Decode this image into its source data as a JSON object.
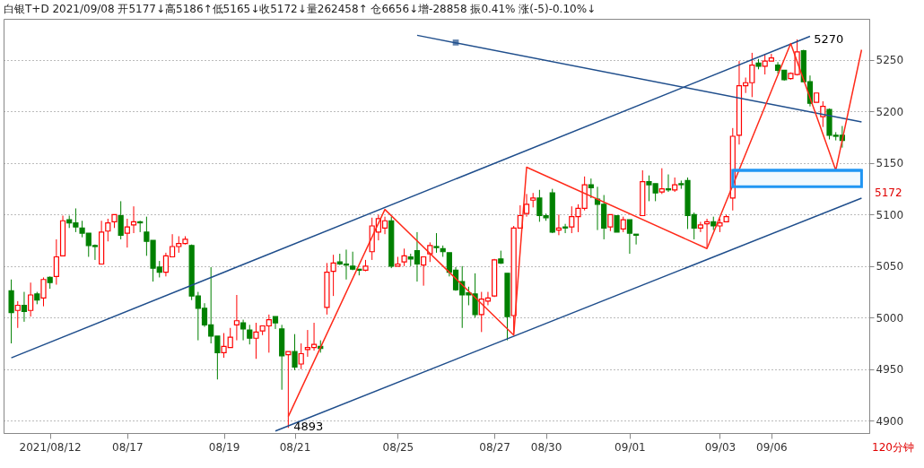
{
  "chart_data": {
    "type": "candlestick",
    "title": "白银T+D 2021/09/08 开5177↓高5186↑低5165↓收5172↓量262458↑ 仓6656↓增-28858 振0.41% 涨(-5)-0.10%↓",
    "categories": [
      null,
      null,
      null,
      null,
      null,
      null,
      "2021/08/12",
      null,
      null,
      null,
      null,
      null,
      null,
      null,
      null,
      null,
      null,
      null,
      "08/17",
      null,
      null,
      null,
      null,
      null,
      null,
      null,
      null,
      null,
      null,
      null,
      null,
      null,
      null,
      "08/19",
      null,
      null,
      null,
      null,
      null,
      null,
      null,
      null,
      null,
      null,
      "08/21",
      null,
      null,
      null,
      null,
      null,
      null,
      null,
      null,
      null,
      null,
      null,
      null,
      null,
      null,
      null,
      "08/25",
      null,
      null,
      null,
      null,
      null,
      null,
      null,
      null,
      null,
      null,
      null,
      null,
      null,
      null,
      "08/27",
      null,
      null,
      null,
      null,
      null,
      null,
      null,
      "08/30",
      null,
      null,
      null,
      null,
      null,
      null,
      null,
      null,
      null,
      null,
      null,
      null,
      "09/01",
      null,
      null,
      null,
      null,
      null,
      null,
      null,
      null,
      null,
      null,
      null,
      null,
      null,
      "09/03",
      null,
      null,
      null,
      null,
      null,
      null,
      null,
      "09/06",
      null,
      null,
      null,
      null,
      null,
      null,
      null,
      null,
      null,
      null,
      null,
      null,
      null,
      null
    ],
    "ohlc": [
      [
        5026,
        5037,
        4975,
        5005
      ],
      [
        5007,
        5016,
        4990,
        5012
      ],
      [
        5012,
        5025,
        4996,
        5006
      ],
      [
        5007,
        5034,
        5001,
        5022
      ],
      [
        5023,
        5025,
        5013,
        5017
      ],
      [
        5019,
        5039,
        5011,
        5037
      ],
      [
        5039,
        5040,
        5028,
        5034
      ],
      [
        5040,
        5076,
        5032,
        5059
      ],
      [
        5060,
        5099,
        5060,
        5094
      ],
      [
        5095,
        5099,
        5087,
        5092
      ],
      [
        5092,
        5106,
        5083,
        5088
      ],
      [
        5087,
        5094,
        5078,
        5082
      ],
      [
        5082,
        5082,
        5059,
        5070
      ],
      [
        5070,
        5071,
        5056,
        5069
      ],
      [
        5052,
        5094,
        5052,
        5083
      ],
      [
        5084,
        5096,
        5074,
        5092
      ],
      [
        5093,
        5100,
        5087,
        5100
      ],
      [
        5099,
        5113,
        5076,
        5080
      ],
      [
        5082,
        5096,
        5068,
        5088
      ],
      [
        5090,
        5108,
        5082,
        5093
      ],
      [
        5093,
        5094,
        5083,
        5092
      ],
      [
        5083,
        5098,
        5060,
        5074
      ],
      [
        5075,
        5075,
        5035,
        5048
      ],
      [
        5049,
        5055,
        5039,
        5044
      ],
      [
        5044,
        5063,
        5040,
        5060
      ],
      [
        5059,
        5081,
        5059,
        5069
      ],
      [
        5069,
        5079,
        5063,
        5072
      ],
      [
        5072,
        5079,
        5071,
        5076
      ],
      [
        5070,
        5071,
        5017,
        5021
      ],
      [
        5021,
        5025,
        4978,
        5009
      ],
      [
        5009,
        5014,
        4991,
        4993
      ],
      [
        4993,
        5049,
        4975,
        4982
      ],
      [
        4982,
        4982,
        4940,
        4966
      ],
      [
        4966,
        4985,
        4961,
        4972
      ],
      [
        4971,
        4990,
        4971,
        4981
      ],
      [
        4993,
        5022,
        4978,
        4997
      ],
      [
        4995,
        4998,
        4978,
        4989
      ],
      [
        4988,
        4993,
        4974,
        4980
      ],
      [
        4980,
        4995,
        4960,
        4986
      ],
      [
        4987,
        4992,
        4983,
        4992
      ],
      [
        4992,
        5003,
        4966,
        4998
      ],
      [
        5001,
        5001,
        4989,
        4995
      ],
      [
        4989,
        4993,
        4930,
        4963
      ],
      [
        4964,
        4967,
        4893,
        4967
      ],
      [
        4967,
        4984,
        4949,
        4952
      ],
      [
        4955,
        4975,
        4950,
        4965
      ],
      [
        4969,
        4988,
        4962,
        4971
      ],
      [
        4971,
        4995,
        4968,
        4974
      ],
      [
        4972,
        4978,
        4966,
        4970
      ],
      [
        5010,
        5053,
        5003,
        5044
      ],
      [
        5045,
        5061,
        5021,
        5053
      ],
      [
        5054,
        5062,
        5051,
        5052
      ],
      [
        5052,
        5066,
        5037,
        5051
      ],
      [
        5050,
        5064,
        5046,
        5047
      ],
      [
        5047,
        5047,
        5041,
        5046
      ],
      [
        5046,
        5056,
        5045,
        5050
      ],
      [
        5064,
        5097,
        5056,
        5089
      ],
      [
        5083,
        5100,
        5075,
        5096
      ],
      [
        5087,
        5098,
        5081,
        5094
      ],
      [
        5094,
        5098,
        5048,
        5050
      ],
      [
        5050,
        5059,
        5050,
        5052
      ],
      [
        5054,
        5067,
        5050,
        5060
      ],
      [
        5059,
        5062,
        5050,
        5057
      ],
      [
        5065,
        5083,
        5035,
        5052
      ],
      [
        5051,
        5059,
        5031,
        5059
      ],
      [
        5062,
        5073,
        5054,
        5070
      ],
      [
        5069,
        5082,
        5063,
        5068
      ],
      [
        5067,
        5070,
        5059,
        5064
      ],
      [
        5063,
        5063,
        5040,
        5044
      ],
      [
        5046,
        5049,
        5026,
        5027
      ],
      [
        5035,
        5050,
        4990,
        5022
      ],
      [
        5024,
        5030,
        5012,
        5022
      ],
      [
        5023,
        5043,
        5000,
        5003
      ],
      [
        5003,
        5025,
        4986,
        5018
      ],
      [
        5016,
        5025,
        5012,
        5019
      ],
      [
        5021,
        5057,
        5020,
        5056
      ],
      [
        5057,
        5065,
        5052,
        5053
      ],
      [
        5043,
        5043,
        4978,
        5001
      ],
      [
        5002,
        5089,
        4985,
        5087
      ],
      [
        5087,
        5109,
        5087,
        5099
      ],
      [
        5101,
        5120,
        5098,
        5110
      ],
      [
        5114,
        5121,
        5107,
        5116
      ],
      [
        5116,
        5124,
        5093,
        5099
      ],
      [
        5099,
        5101,
        5094,
        5097
      ],
      [
        5121,
        5125,
        5082,
        5083
      ],
      [
        5085,
        5100,
        5080,
        5087
      ],
      [
        5088,
        5091,
        5082,
        5087
      ],
      [
        5088,
        5108,
        5082,
        5098
      ],
      [
        5098,
        5110,
        5083,
        5106
      ],
      [
        5106,
        5137,
        5104,
        5129
      ],
      [
        5129,
        5135,
        5116,
        5126
      ],
      [
        5115,
        5127,
        5085,
        5110
      ],
      [
        5110,
        5119,
        5076,
        5087
      ],
      [
        5088,
        5100,
        5084,
        5100
      ],
      [
        5099,
        5099,
        5083,
        5083
      ],
      [
        5086,
        5098,
        5083,
        5095
      ],
      [
        5095,
        5095,
        5062,
        5082
      ],
      [
        5081,
        5081,
        5071,
        5080
      ],
      [
        5099,
        5143,
        5099,
        5132
      ],
      [
        5132,
        5138,
        5113,
        5129
      ],
      [
        5130,
        5130,
        5113,
        5121
      ],
      [
        5122,
        5145,
        5120,
        5125
      ],
      [
        5125,
        5139,
        5122,
        5124
      ],
      [
        5124,
        5136,
        5122,
        5129
      ],
      [
        5130,
        5133,
        5125,
        5129
      ],
      [
        5133,
        5136,
        5086,
        5099
      ],
      [
        5100,
        5102,
        5076,
        5087
      ],
      [
        5087,
        5093,
        5083,
        5090
      ],
      [
        5091,
        5096,
        5068,
        5093
      ],
      [
        5093,
        5098,
        5085,
        5089
      ],
      [
        5089,
        5096,
        5083,
        5092
      ],
      [
        5093,
        5100,
        5093,
        5098
      ],
      [
        5116,
        5184,
        5104,
        5176
      ],
      [
        5177,
        5249,
        5168,
        5225
      ],
      [
        5225,
        5233,
        5218,
        5228
      ],
      [
        5228,
        5257,
        5214,
        5245
      ],
      [
        5247,
        5251,
        5241,
        5244
      ],
      [
        5244,
        5256,
        5236,
        5249
      ],
      [
        5249,
        5256,
        5249,
        5252
      ],
      [
        5245,
        5248,
        5237,
        5240
      ],
      [
        5240,
        5240,
        5230,
        5231
      ],
      [
        5232,
        5238,
        5231,
        5237
      ],
      [
        5236,
        5270,
        5235,
        5258
      ],
      [
        5259,
        5260,
        5229,
        5229
      ],
      [
        5229,
        5235,
        5205,
        5208
      ],
      [
        5209,
        5218,
        5209,
        5218
      ],
      [
        5195,
        5210,
        5185,
        5205
      ],
      [
        5202,
        5203,
        5173,
        5177
      ],
      [
        5177,
        5180,
        5172,
        5176
      ],
      [
        5177,
        5186,
        5165,
        5172
      ],
      null,
      null,
      null
    ],
    "colors": [
      "#008000",
      "#ff0000",
      "#008000",
      "#ff0000",
      "#008000",
      "#ff0000",
      "#008000",
      "#ff0000",
      "#ff0000",
      "#008000",
      "#008000",
      "#008000",
      "#008000",
      "#008000",
      "#ff0000",
      "#ff0000",
      "#ff0000",
      "#008000",
      "#ff0000",
      "#ff0000",
      "#008000",
      "#008000",
      "#008000",
      "#008000",
      "#ff0000",
      "#ff0000",
      "#ff0000",
      "#ff0000",
      "#008000",
      "#008000",
      "#008000",
      "#008000",
      "#008000",
      "#ff0000",
      "#ff0000",
      "#ff0000",
      "#008000",
      "#008000",
      "#ff0000",
      "#ff0000",
      "#ff0000",
      "#008000",
      "#008000",
      "#ff0000",
      "#008000",
      "#ff0000",
      "#ff0000",
      "#ff0000",
      "#008000",
      "#ff0000",
      "#ff0000",
      "#008000",
      "#008000",
      "#008000",
      "#008000",
      "#ff0000",
      "#ff0000",
      "#ff0000",
      "#ff0000",
      "#008000",
      "#ff0000",
      "#ff0000",
      "#008000",
      "#008000",
      "#ff0000",
      "#ff0000",
      "#008000",
      "#008000",
      "#008000",
      "#008000",
      "#008000",
      "#008000",
      "#008000",
      "#ff0000",
      "#ff0000",
      "#ff0000",
      "#008000",
      "#008000",
      "#ff0000",
      "#ff0000",
      "#ff0000",
      "#ff0000",
      "#008000",
      "#008000",
      "#008000",
      "#ff0000",
      "#008000",
      "#ff0000",
      "#ff0000",
      "#ff0000",
      "#008000",
      "#008000",
      "#008000",
      "#ff0000",
      "#008000",
      "#ff0000",
      "#008000",
      "#008000",
      "#ff0000",
      "#008000",
      "#008000",
      "#ff0000",
      "#008000",
      "#ff0000",
      "#008000",
      "#008000",
      "#008000",
      "#ff0000",
      "#ff0000",
      "#008000",
      "#ff0000",
      "#ff0000",
      "#ff0000",
      "#ff0000",
      "#ff0000",
      "#ff0000",
      "#008000",
      "#ff0000",
      "#ff0000",
      "#008000",
      "#008000",
      "#ff0000",
      "#ff0000",
      "#008000",
      "#008000",
      "#ff0000",
      "#ff0000",
      "#008000",
      "#008000",
      "#008000",
      null,
      null,
      null
    ],
    "ylim": [
      4888,
      5290
    ],
    "yticks": [
      4900,
      4950,
      5000,
      5050,
      5100,
      5150,
      5200,
      5250
    ],
    "grid": "y",
    "series": [
      {
        "type": "line",
        "color": "#1f4e8c",
        "values": [
          4961,
          null,
          null,
          null,
          null,
          null,
          null,
          null,
          null,
          null,
          null,
          null,
          null,
          null,
          null,
          null,
          null,
          null,
          null,
          null,
          null,
          null,
          null,
          null,
          null,
          null,
          null,
          null,
          null,
          null,
          null,
          null,
          null,
          null,
          null,
          null,
          null,
          null,
          null,
          null,
          null,
          null,
          null,
          null,
          null,
          null,
          null,
          null,
          null,
          null,
          null,
          null,
          null,
          null,
          null,
          null,
          null,
          null,
          null,
          null,
          null,
          null,
          null,
          null,
          null,
          null,
          null,
          null,
          null,
          null,
          null,
          null,
          null,
          null,
          null,
          null,
          null,
          null,
          null,
          null,
          null,
          null,
          null,
          null,
          null,
          null,
          null,
          null,
          null,
          null,
          null,
          null,
          null,
          null,
          null,
          null,
          null,
          null,
          null,
          null,
          null,
          null,
          null,
          null,
          null,
          null,
          null,
          null,
          null,
          null,
          null,
          null,
          null,
          null,
          null,
          null,
          null,
          null,
          null,
          null,
          null,
          null,
          null,
          null,
          5273,
          null,
          null,
          null,
          null,
          null,
          null,
          null,
          null
        ]
      },
      {
        "type": "line",
        "color": "#1f4e8c",
        "values": [
          null,
          null,
          null,
          null,
          null,
          null,
          null,
          null,
          null,
          null,
          null,
          null,
          null,
          null,
          null,
          null,
          null,
          null,
          null,
          null,
          null,
          null,
          null,
          null,
          null,
          null,
          null,
          null,
          null,
          null,
          null,
          null,
          null,
          null,
          null,
          null,
          null,
          null,
          null,
          null,
          null,
          4890,
          null,
          null,
          null,
          null,
          null,
          null,
          null,
          null,
          null,
          null,
          null,
          null,
          null,
          null,
          null,
          null,
          null,
          null,
          null,
          null,
          null,
          null,
          null,
          null,
          null,
          null,
          null,
          null,
          null,
          null,
          null,
          null,
          null,
          null,
          null,
          null,
          null,
          null,
          null,
          null,
          null,
          null,
          null,
          null,
          null,
          null,
          null,
          null,
          null,
          null,
          null,
          null,
          null,
          null,
          null,
          null,
          null,
          null,
          null,
          null,
          null,
          null,
          null,
          null,
          null,
          null,
          null,
          null,
          null,
          null,
          null,
          null,
          null,
          null,
          null,
          null,
          null,
          null,
          null,
          null,
          null,
          null,
          null,
          null,
          null,
          null,
          null,
          null,
          null,
          null,
          5116
        ]
      },
      {
        "type": "line",
        "color": "#1f4e8c",
        "values": [
          null,
          null,
          null,
          null,
          null,
          null,
          null,
          null,
          null,
          null,
          null,
          null,
          null,
          null,
          null,
          null,
          null,
          null,
          null,
          null,
          null,
          null,
          null,
          null,
          null,
          null,
          null,
          null,
          null,
          null,
          null,
          null,
          null,
          null,
          null,
          null,
          null,
          null,
          null,
          null,
          null,
          null,
          null,
          null,
          null,
          null,
          null,
          null,
          null,
          null,
          null,
          null,
          null,
          null,
          null,
          null,
          null,
          null,
          null,
          null,
          null,
          null,
          null,
          5274,
          null,
          null,
          null,
          null,
          null,
          null,
          null,
          null,
          null,
          null,
          null,
          null,
          null,
          null,
          null,
          null,
          null,
          null,
          null,
          null,
          null,
          null,
          null,
          null,
          null,
          null,
          null,
          null,
          null,
          null,
          null,
          null,
          null,
          null,
          null,
          null,
          null,
          null,
          null,
          null,
          null,
          null,
          null,
          null,
          null,
          null,
          null,
          null,
          null,
          null,
          null,
          null,
          null,
          null,
          null,
          null,
          null,
          null,
          null,
          null,
          null,
          null,
          null,
          null,
          null,
          null,
          null,
          null,
          5190
        ]
      },
      {
        "type": "scatter",
        "marker": "square",
        "color": "#1f4e8c",
        "values": [
          null,
          null,
          null,
          null,
          null,
          null,
          null,
          null,
          null,
          null,
          null,
          null,
          null,
          null,
          null,
          null,
          null,
          null,
          null,
          null,
          null,
          null,
          null,
          null,
          null,
          null,
          null,
          null,
          null,
          null,
          null,
          null,
          null,
          null,
          null,
          null,
          null,
          null,
          null,
          null,
          null,
          null,
          null,
          null,
          null,
          null,
          null,
          null,
          null,
          null,
          null,
          null,
          null,
          null,
          null,
          null,
          null,
          null,
          null,
          null,
          null,
          null,
          null,
          null,
          null,
          null,
          null,
          null,
          null,
          5267,
          null,
          null,
          null,
          null,
          null,
          null,
          null,
          null,
          null,
          null,
          null,
          null,
          null,
          null,
          null,
          null,
          null,
          null,
          null,
          null,
          null,
          null,
          null,
          null,
          null,
          null,
          null,
          null,
          null,
          null,
          null,
          null,
          null,
          null,
          null,
          null,
          null,
          null,
          null,
          null,
          null,
          null,
          null,
          null,
          null,
          null,
          null,
          null,
          null,
          null,
          null,
          null,
          null,
          null,
          null,
          null,
          null,
          null,
          null,
          null,
          null,
          null,
          null
        ]
      },
      {
        "type": "line",
        "color": "#ff2a1a",
        "values": [
          null,
          null,
          null,
          null,
          null,
          null,
          null,
          null,
          null,
          null,
          null,
          null,
          null,
          null,
          null,
          null,
          null,
          null,
          null,
          null,
          null,
          null,
          null,
          null,
          null,
          null,
          null,
          null,
          null,
          null,
          null,
          null,
          null,
          null,
          null,
          null,
          null,
          null,
          null,
          null,
          null,
          null,
          null,
          4904,
          null,
          null,
          null,
          null,
          null,
          null,
          null,
          null,
          null,
          null,
          null,
          null,
          null,
          null,
          5105,
          null,
          null,
          null,
          null,
          null,
          null,
          null,
          null,
          null,
          null,
          null,
          null,
          null,
          null,
          null,
          null,
          null,
          null,
          null,
          4983,
          null,
          5146,
          null,
          null,
          null,
          null,
          null,
          null,
          null,
          null,
          null,
          null,
          null,
          null,
          null,
          null,
          null,
          null,
          null,
          null,
          null,
          null,
          null,
          null,
          null,
          null,
          null,
          null,
          null,
          5067,
          null,
          null,
          null,
          null,
          null,
          null,
          null,
          null,
          null,
          null,
          null,
          null,
          5266,
          null,
          null,
          null,
          null,
          null,
          null,
          5143,
          null,
          null,
          null,
          5260
        ]
      },
      {
        "type": "line",
        "color": "#2196f3",
        "values": [
          null,
          null,
          null,
          null,
          null,
          null,
          null,
          null,
          null,
          null,
          null,
          null,
          null,
          null,
          null,
          null,
          null,
          null,
          null,
          null,
          null,
          null,
          null,
          null,
          null,
          null,
          null,
          null,
          null,
          null,
          null,
          null,
          null,
          null,
          null,
          null,
          null,
          null,
          null,
          null,
          null,
          null,
          null,
          null,
          null,
          null,
          null,
          null,
          null,
          null,
          null,
          null,
          null,
          null,
          null,
          null,
          null,
          null,
          null,
          null,
          null,
          null,
          null,
          null,
          null,
          null,
          null,
          null,
          null,
          null,
          null,
          null,
          null,
          null,
          null,
          null,
          null,
          null,
          null,
          null,
          null,
          null,
          null,
          null,
          null,
          null,
          null,
          null,
          null,
          null,
          null,
          null,
          null,
          null,
          null,
          null,
          null,
          null,
          null,
          null,
          null,
          null,
          null,
          null,
          null,
          null,
          null,
          null,
          null,
          null,
          null,
          null,
          5143,
          5143,
          5143,
          5143,
          5143,
          5143,
          5143,
          5143,
          5143,
          5143,
          5143,
          5143,
          5143,
          5143,
          5143,
          5143,
          5143,
          5143,
          5143,
          5143,
          5143
        ],
        "lower": [
          null,
          null,
          null,
          null,
          null,
          null,
          null,
          null,
          null,
          null,
          null,
          null,
          null,
          null,
          null,
          null,
          null,
          null,
          null,
          null,
          null,
          null,
          null,
          null,
          null,
          null,
          null,
          null,
          null,
          null,
          null,
          null,
          null,
          null,
          null,
          null,
          null,
          null,
          null,
          null,
          null,
          null,
          null,
          null,
          null,
          null,
          null,
          null,
          null,
          null,
          null,
          null,
          null,
          null,
          null,
          null,
          null,
          null,
          null,
          null,
          null,
          null,
          null,
          null,
          null,
          null,
          null,
          null,
          null,
          null,
          null,
          null,
          null,
          null,
          null,
          null,
          null,
          null,
          null,
          null,
          null,
          null,
          null,
          null,
          null,
          null,
          null,
          null,
          null,
          null,
          null,
          null,
          null,
          null,
          null,
          null,
          null,
          null,
          null,
          null,
          null,
          null,
          null,
          null,
          null,
          null,
          null,
          null,
          null,
          null,
          null,
          null,
          5127,
          5127,
          5127,
          5127,
          5127,
          5127,
          5127,
          5127,
          5127,
          5127,
          5127,
          5127,
          5127,
          5127,
          5127,
          5127,
          5127,
          5127,
          5127,
          5127,
          5127
        ],
        "upper": [
          null,
          null,
          null,
          null,
          null,
          null,
          null,
          null,
          null,
          null,
          null,
          null,
          null,
          null,
          null,
          null,
          null,
          null,
          null,
          null,
          null,
          null,
          null,
          null,
          null,
          null,
          null,
          null,
          null,
          null,
          null,
          null,
          null,
          null,
          null,
          null,
          null,
          null,
          null,
          null,
          null,
          null,
          null,
          null,
          null,
          null,
          null,
          null,
          null,
          null,
          null,
          null,
          null,
          null,
          null,
          null,
          null,
          null,
          null,
          null,
          null,
          null,
          null,
          null,
          null,
          null,
          null,
          null,
          null,
          null,
          null,
          null,
          null,
          null,
          null,
          null,
          null,
          null,
          null,
          null,
          null,
          null,
          null,
          null,
          null,
          null,
          null,
          null,
          null,
          null,
          null,
          null,
          null,
          null,
          null,
          null,
          null,
          null,
          null,
          null,
          null,
          null,
          null,
          null,
          null,
          null,
          null,
          null,
          null,
          null,
          null,
          null,
          5143,
          5143,
          5143,
          5143,
          5143,
          5143,
          5143,
          5143,
          5143,
          5143,
          5143,
          5143,
          5143,
          5143,
          5143,
          5143,
          5143,
          5143,
          5143,
          5143,
          5143
        ]
      }
    ],
    "annotations": [
      "4893",
      "5270",
      "5172",
      "120分钟"
    ]
  }
}
